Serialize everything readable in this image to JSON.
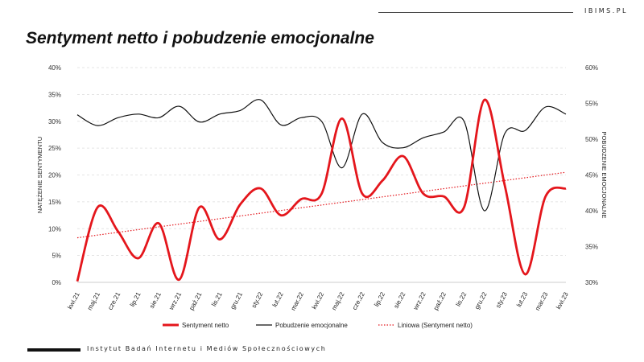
{
  "brand": "IBIMS.PL",
  "footer": "Instytut Badań Internetu i Mediów Społecznościowych",
  "chart_data": {
    "type": "line",
    "title": "Sentyment netto i pobudzenie emocjonalne",
    "ylabel_left": "NATĘŻENIE SENTYMENTU",
    "ylabel_right": "POBUDZENIE EMOCJONALNE",
    "ylim_left": [
      0,
      40
    ],
    "ylim_right": [
      30,
      60
    ],
    "yticks_left": [
      "0%",
      "5%",
      "10%",
      "15%",
      "20%",
      "25%",
      "30%",
      "35%",
      "40%"
    ],
    "yticks_right": [
      "30%",
      "35%",
      "40%",
      "45%",
      "50%",
      "55%",
      "60%"
    ],
    "grid": true,
    "legend_position": "bottom",
    "categories": [
      "kwi.21",
      "maj.21",
      "cze.21",
      "lip.21",
      "sie.21",
      "wrz.21",
      "paź.21",
      "lis.21",
      "gru.21",
      "sty.22",
      "lut.22",
      "mar.22",
      "kwi.22",
      "maj.22",
      "cze.22",
      "lip.22",
      "sie.22",
      "wrz.22",
      "paź.22",
      "lis.22",
      "gru.22",
      "sty.23",
      "lut.23",
      "mar.23",
      "kwi.23"
    ],
    "series": [
      {
        "name": "Sentyment netto",
        "axis": "left",
        "color": "#e4161c",
        "values": [
          0.2,
          14.0,
          9.5,
          4.5,
          11.0,
          0.5,
          14.0,
          8.0,
          14.5,
          17.5,
          12.5,
          15.5,
          16.5,
          30.5,
          16.5,
          19.0,
          23.5,
          16.5,
          16.0,
          14.0,
          34.0,
          18.0,
          1.5,
          16.0,
          17.5
        ]
      },
      {
        "name": "Pobudzenie emocjonalne",
        "axis": "right",
        "color": "#111111",
        "values": [
          53.4,
          51.9,
          53.0,
          53.5,
          53.0,
          54.6,
          52.4,
          53.5,
          54.0,
          55.5,
          52.0,
          53.0,
          52.5,
          46.0,
          53.5,
          49.5,
          48.8,
          50.2,
          51.0,
          52.5,
          40.0,
          50.8,
          51.2,
          54.5,
          53.5
        ]
      },
      {
        "name": "Liniowa (Sentyment netto)",
        "axis": "left",
        "color": "#e4161c",
        "style": "dotted",
        "trend": [
          8.3,
          20.5
        ]
      }
    ]
  }
}
